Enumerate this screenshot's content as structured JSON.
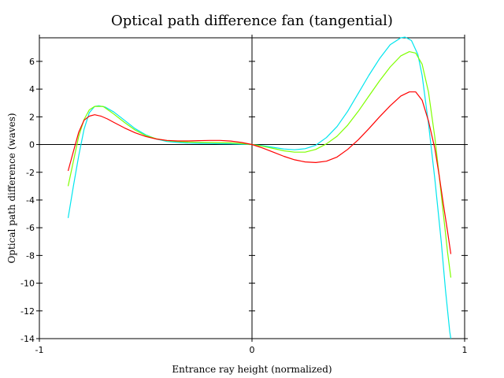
{
  "chart_data": {
    "type": "line",
    "title": "Optical path difference fan (tangential)",
    "xlabel": "Entrance ray height (normalized)",
    "ylabel": "Optical path difference (waves)",
    "xlim": [
      -1,
      1
    ],
    "ylim": [
      -14,
      7.7
    ],
    "xticks": [
      {
        "value": -1,
        "label": "-1"
      },
      {
        "value": 0,
        "label": "0"
      },
      {
        "value": 1,
        "label": "1"
      }
    ],
    "yticks": [
      {
        "value": 6,
        "label": "6"
      },
      {
        "value": 4,
        "label": "4"
      },
      {
        "value": 2,
        "label": "2"
      },
      {
        "value": 0,
        "label": "0"
      },
      {
        "value": -2,
        "label": "-2"
      },
      {
        "value": -4,
        "label": "-4"
      },
      {
        "value": -6,
        "label": "-6"
      },
      {
        "value": -8,
        "label": "-8"
      },
      {
        "value": -10,
        "label": "-10"
      },
      {
        "value": -12,
        "label": "-12"
      },
      {
        "value": -14,
        "label": "-14"
      }
    ],
    "grid": false,
    "zero_lines": true,
    "series": [
      {
        "color": "#00e5ee",
        "x": [
          -0.865,
          -0.84,
          -0.815,
          -0.79,
          -0.765,
          -0.74,
          -0.72,
          -0.69,
          -0.65,
          -0.6,
          -0.55,
          -0.5,
          -0.45,
          -0.4,
          -0.35,
          -0.3,
          -0.25,
          -0.2,
          -0.15,
          -0.1,
          -0.05,
          0.0,
          0.05,
          0.1,
          0.15,
          0.2,
          0.25,
          0.3,
          0.35,
          0.4,
          0.45,
          0.5,
          0.55,
          0.6,
          0.65,
          0.7,
          0.72,
          0.75,
          0.78,
          0.8,
          0.83,
          0.86,
          0.89,
          0.91,
          0.93,
          0.935
        ],
        "y": [
          -5.3,
          -3.0,
          -0.8,
          1.1,
          2.3,
          2.75,
          2.8,
          2.7,
          2.35,
          1.75,
          1.15,
          0.7,
          0.4,
          0.22,
          0.15,
          0.1,
          0.08,
          0.07,
          0.06,
          0.05,
          0.02,
          0.0,
          -0.08,
          -0.2,
          -0.32,
          -0.38,
          -0.3,
          -0.05,
          0.5,
          1.3,
          2.4,
          3.7,
          5.0,
          6.2,
          7.2,
          7.7,
          7.75,
          7.5,
          6.5,
          5.0,
          1.5,
          -2.5,
          -7.0,
          -10.5,
          -13.5,
          -14.0
        ]
      },
      {
        "color": "#7fff00",
        "x": [
          -0.865,
          -0.84,
          -0.815,
          -0.79,
          -0.765,
          -0.74,
          -0.7,
          -0.65,
          -0.6,
          -0.55,
          -0.5,
          -0.45,
          -0.4,
          -0.35,
          -0.3,
          -0.25,
          -0.2,
          -0.15,
          -0.1,
          -0.05,
          0.0,
          0.05,
          0.1,
          0.15,
          0.2,
          0.25,
          0.3,
          0.35,
          0.4,
          0.45,
          0.5,
          0.55,
          0.6,
          0.65,
          0.7,
          0.74,
          0.77,
          0.8,
          0.83,
          0.86,
          0.88,
          0.9,
          0.92,
          0.935
        ],
        "y": [
          -3.0,
          -1.2,
          0.6,
          1.8,
          2.5,
          2.75,
          2.75,
          2.2,
          1.6,
          1.05,
          0.65,
          0.42,
          0.28,
          0.22,
          0.18,
          0.16,
          0.15,
          0.14,
          0.12,
          0.07,
          0.0,
          -0.12,
          -0.28,
          -0.45,
          -0.55,
          -0.55,
          -0.35,
          0.05,
          0.6,
          1.4,
          2.4,
          3.5,
          4.6,
          5.6,
          6.4,
          6.7,
          6.6,
          5.8,
          3.8,
          0.5,
          -2.2,
          -5.0,
          -7.8,
          -9.6
        ]
      },
      {
        "color": "#ff0000",
        "x": [
          -0.865,
          -0.84,
          -0.815,
          -0.79,
          -0.765,
          -0.74,
          -0.71,
          -0.68,
          -0.65,
          -0.6,
          -0.55,
          -0.5,
          -0.45,
          -0.4,
          -0.35,
          -0.3,
          -0.25,
          -0.2,
          -0.15,
          -0.1,
          -0.05,
          0.0,
          0.05,
          0.1,
          0.15,
          0.2,
          0.25,
          0.3,
          0.35,
          0.4,
          0.45,
          0.5,
          0.55,
          0.6,
          0.65,
          0.7,
          0.74,
          0.77,
          0.8,
          0.83,
          0.86,
          0.88,
          0.9,
          0.92,
          0.935
        ],
        "y": [
          -1.9,
          -0.5,
          0.9,
          1.75,
          2.05,
          2.15,
          2.05,
          1.85,
          1.6,
          1.2,
          0.85,
          0.58,
          0.4,
          0.3,
          0.26,
          0.26,
          0.28,
          0.3,
          0.3,
          0.25,
          0.15,
          0.0,
          -0.25,
          -0.55,
          -0.85,
          -1.1,
          -1.25,
          -1.3,
          -1.2,
          -0.9,
          -0.35,
          0.35,
          1.15,
          2.0,
          2.8,
          3.5,
          3.8,
          3.8,
          3.2,
          1.7,
          -0.3,
          -2.2,
          -4.3,
          -6.3,
          -7.9
        ]
      }
    ]
  }
}
